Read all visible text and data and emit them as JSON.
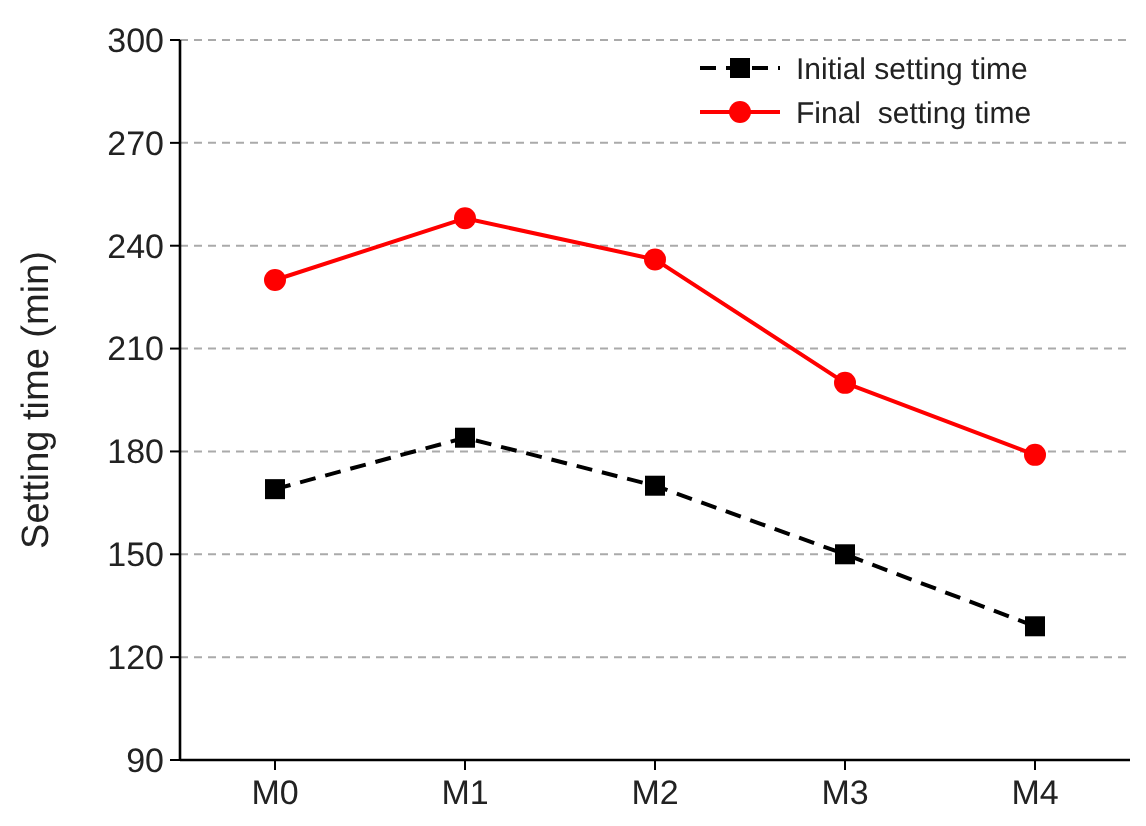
{
  "chart_data": {
    "type": "line",
    "ylabel": "Setting time (min)",
    "categories": [
      "M0",
      "M1",
      "M2",
      "M3",
      "M4"
    ],
    "series": [
      {
        "name": "Initial setting time",
        "color": "#000000",
        "values": [
          169,
          184,
          170,
          150,
          129
        ],
        "marker": "square",
        "line_style": "dashed"
      },
      {
        "name": "Final  setting time",
        "color": "#ff0000",
        "values": [
          230,
          248,
          236,
          200,
          179
        ],
        "marker": "circle",
        "line_style": "solid"
      }
    ],
    "ylim": [
      90,
      300
    ],
    "yticks": [
      90,
      120,
      150,
      180,
      210,
      240,
      270,
      300
    ],
    "grid": "y",
    "legend": "top right"
  }
}
